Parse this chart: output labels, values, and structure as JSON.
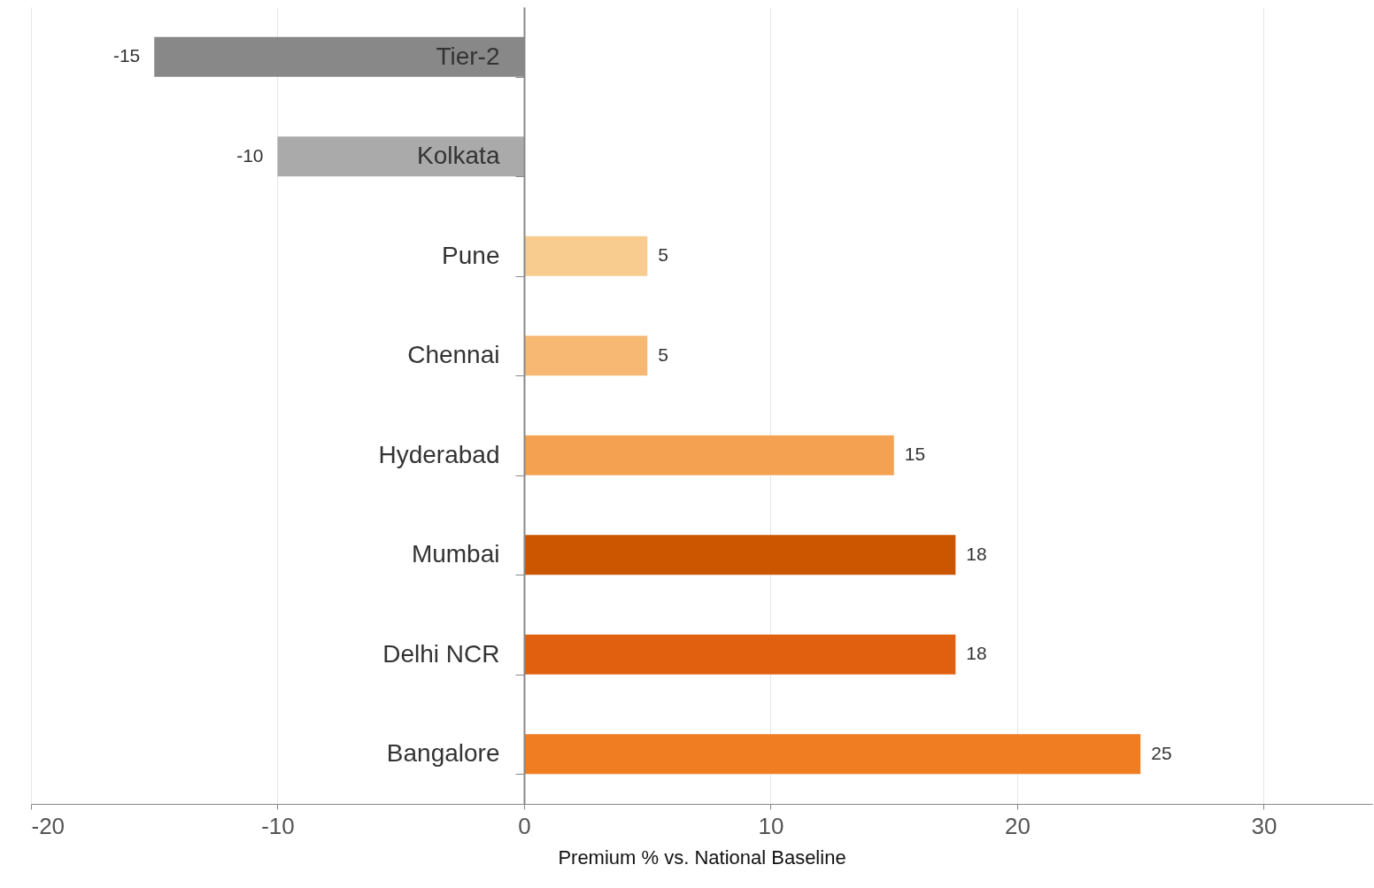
{
  "chart_data": {
    "type": "bar",
    "orientation": "horizontal",
    "xlabel": "Premium % vs. National Baseline",
    "categories": [
      "Tier-2",
      "Kolkata",
      "Pune",
      "Chennai",
      "Hyderabad",
      "Mumbai",
      "Delhi NCR",
      "Bangalore"
    ],
    "values": [
      -15,
      -10,
      5,
      5,
      15,
      17.5,
      17.5,
      25
    ],
    "value_labels": [
      "-15",
      "-10",
      "5",
      "5",
      "15",
      "18",
      "18",
      "25"
    ],
    "colors": [
      "#888888",
      "#aaaaaa",
      "#f8cb8f",
      "#f6b873",
      "#f4a152",
      "#cc5500",
      "#e06010",
      "#f07d22"
    ],
    "xlim": [
      -20,
      34.4
    ],
    "xticks": [
      -20,
      -10,
      0,
      10,
      20,
      30
    ],
    "grid": "x"
  }
}
